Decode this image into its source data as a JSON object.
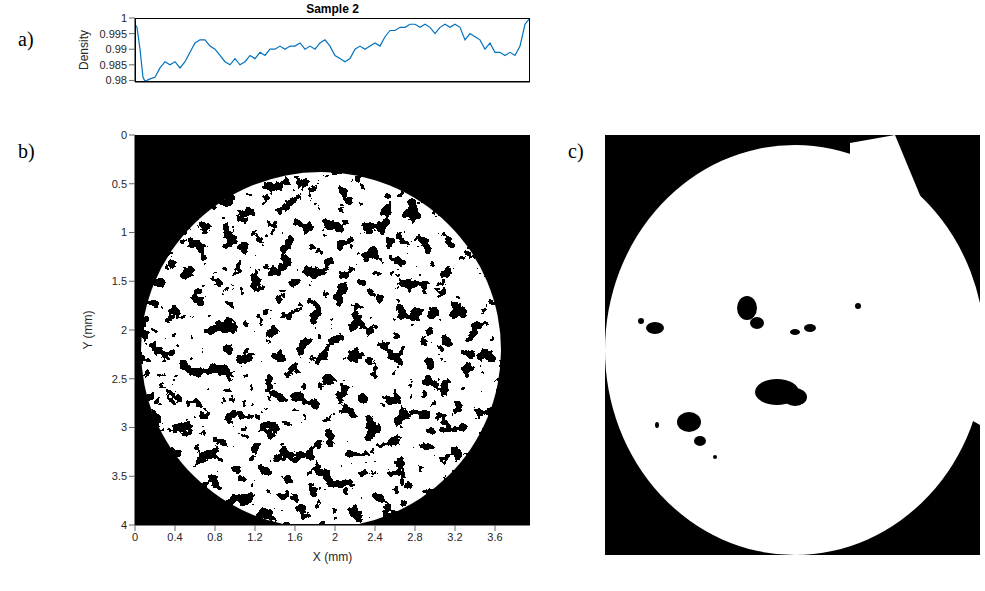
{
  "panel_labels": [
    "a)",
    "b)",
    "c)"
  ],
  "chart_data": [
    {
      "type": "line",
      "title": "Sample 2",
      "y_label": "Density",
      "x": [
        0,
        0.02,
        0.05,
        0.08,
        0.1,
        0.15,
        0.2,
        0.25,
        0.3,
        0.35,
        0.4,
        0.45,
        0.5,
        0.55,
        0.6,
        0.65,
        0.7,
        0.75,
        0.8,
        0.85,
        0.9,
        0.95,
        1.0,
        1.05,
        1.1,
        1.15,
        1.2,
        1.25,
        1.3,
        1.35,
        1.4,
        1.45,
        1.5,
        1.55,
        1.6,
        1.65,
        1.7,
        1.75,
        1.8,
        1.85,
        1.9,
        1.95,
        2.0,
        2.05,
        2.1,
        2.15,
        2.2,
        2.25,
        2.3,
        2.35,
        2.4,
        2.45,
        2.5,
        2.55,
        2.6,
        2.65,
        2.7,
        2.75,
        2.8,
        2.85,
        2.9,
        2.95,
        3.0,
        3.05,
        3.1,
        3.15,
        3.2,
        3.25,
        3.3,
        3.35,
        3.4,
        3.45,
        3.5,
        3.55,
        3.6,
        3.65,
        3.7,
        3.75,
        3.8,
        3.85,
        3.9,
        3.95
      ],
      "values": [
        0.998,
        0.997,
        0.99,
        0.981,
        0.9797,
        0.9805,
        0.981,
        0.984,
        0.986,
        0.985,
        0.986,
        0.984,
        0.986,
        0.989,
        0.992,
        0.993,
        0.993,
        0.991,
        0.99,
        0.988,
        0.986,
        0.985,
        0.987,
        0.985,
        0.986,
        0.988,
        0.987,
        0.989,
        0.988,
        0.99,
        0.99,
        0.991,
        0.99,
        0.991,
        0.991,
        0.992,
        0.99,
        0.991,
        0.99,
        0.992,
        0.993,
        0.991,
        0.988,
        0.987,
        0.986,
        0.987,
        0.99,
        0.991,
        0.99,
        0.991,
        0.992,
        0.991,
        0.994,
        0.996,
        0.996,
        0.997,
        0.997,
        0.998,
        0.998,
        0.997,
        0.998,
        0.997,
        0.995,
        0.997,
        0.998,
        0.997,
        0.998,
        0.997,
        0.993,
        0.995,
        0.994,
        0.993,
        0.99,
        0.992,
        0.989,
        0.989,
        0.988,
        0.989,
        0.988,
        0.991,
        0.998,
        1.0
      ],
      "color": "#0072bd",
      "xlim": [
        0,
        3.95
      ],
      "ylim": [
        0.9795,
        1
      ],
      "yticks": [
        0.98,
        0.985,
        0.99,
        0.995,
        1
      ],
      "tick_labels": "y"
    },
    {
      "type": "image",
      "x_label": "X (mm)",
      "y_label": "Y (mm)",
      "xlim": [
        0,
        3.95
      ],
      "ylim": [
        0,
        4
      ],
      "xticks": [
        0,
        0.4,
        0.8,
        1.2,
        1.6,
        2,
        2.4,
        2.8,
        3.2,
        3.6
      ],
      "yticks": [
        0,
        0.5,
        1,
        1.5,
        2,
        2.5,
        3,
        3.5,
        4
      ]
    }
  ]
}
